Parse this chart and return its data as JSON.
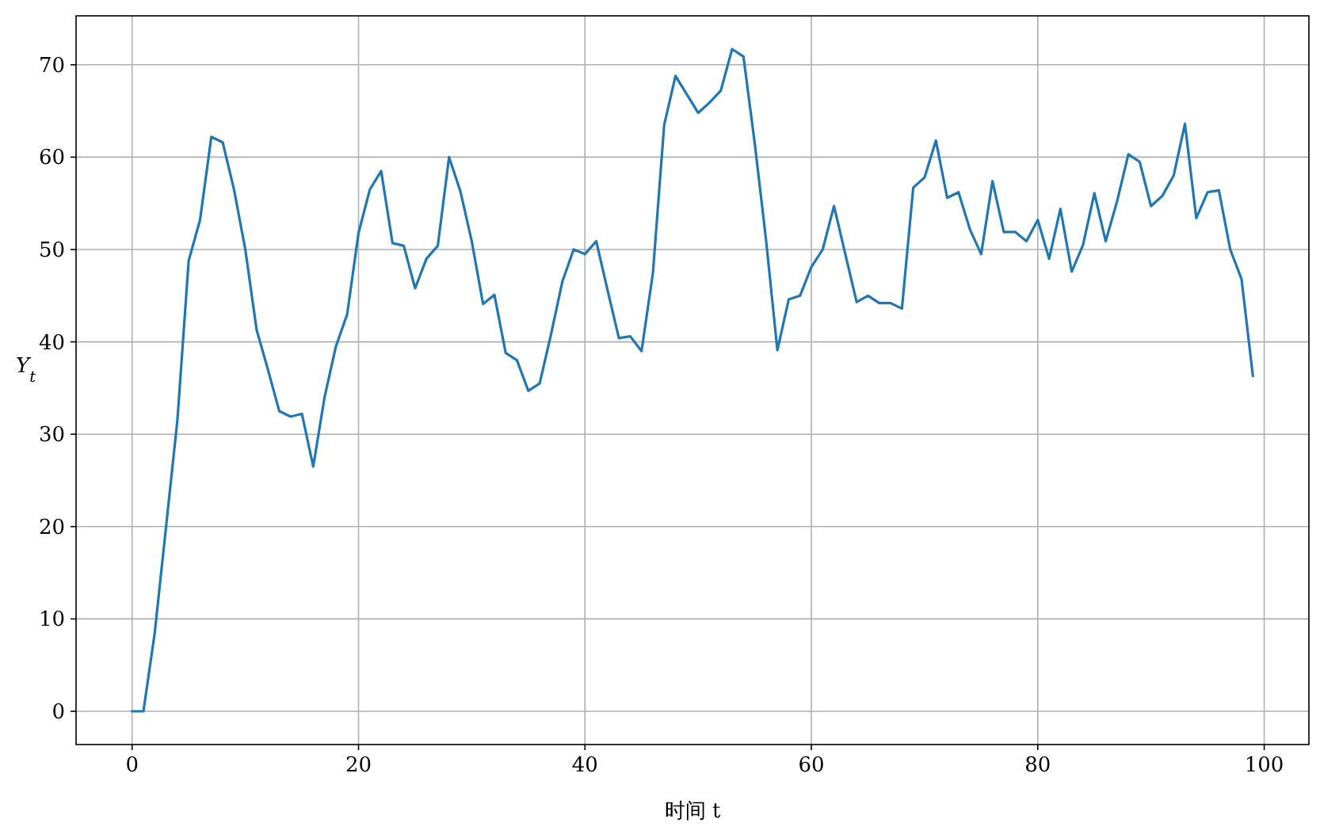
{
  "chart_data": {
    "type": "line",
    "xlabel": "时间 t",
    "ylabel": "Y$_{t}$",
    "x": [
      0,
      1,
      2,
      3,
      4,
      5,
      6,
      7,
      8,
      9,
      10,
      11,
      12,
      13,
      14,
      15,
      16,
      17,
      18,
      19,
      20,
      21,
      22,
      23,
      24,
      25,
      26,
      27,
      28,
      29,
      30,
      31,
      32,
      33,
      34,
      35,
      36,
      37,
      38,
      39,
      40,
      41,
      42,
      43,
      44,
      45,
      46,
      47,
      48,
      49,
      50,
      51,
      52,
      53,
      54,
      55,
      56,
      57,
      58,
      59,
      60,
      61,
      62,
      63,
      64,
      65,
      66,
      67,
      68,
      69,
      70,
      71,
      72,
      73,
      74,
      75,
      76,
      77,
      78,
      79,
      80,
      81,
      82,
      83,
      84,
      85,
      86,
      87,
      88,
      89,
      90,
      91,
      92,
      93,
      94,
      95,
      96,
      97,
      98,
      99
    ],
    "series": [
      {
        "color": "#1f77b4",
        "values": [
          0,
          0,
          8.5,
          20,
          31.5,
          48.8,
          53.2,
          62.2,
          61.6,
          56.5,
          50,
          41.3,
          37,
          32.5,
          31.9,
          32.2,
          26.5,
          34,
          39.5,
          43,
          51.8,
          56.5,
          58.5,
          50.7,
          50.4,
          45.8,
          49,
          50.4,
          60,
          56.3,
          50.9,
          44.1,
          45.1,
          38.8,
          38,
          34.7,
          35.5,
          40.8,
          46.5,
          50,
          49.5,
          50.9,
          45.6,
          40.4,
          40.6,
          39,
          47.4,
          63.5,
          68.8,
          66.8,
          64.8,
          65.9,
          67.2,
          71.7,
          70.9,
          61.5,
          51,
          39.1,
          44.6,
          45,
          48.1,
          50,
          54.7,
          49.5,
          44.3,
          45,
          44.2,
          44.2,
          43.6,
          56.7,
          57.8,
          61.8,
          55.6,
          56.2,
          52.2,
          49.5,
          57.4,
          51.9,
          51.9,
          50.9,
          53.2,
          49,
          54.4,
          47.6,
          50.5,
          56.1,
          50.9,
          55.2,
          60.3,
          59.5,
          54.7,
          55.8,
          58,
          63.6,
          53.4,
          56.2,
          56.4,
          50,
          46.8,
          36.3
        ]
      }
    ],
    "xlim": [
      -4.95,
      103.95
    ],
    "ylim": [
      -3.6,
      75.3
    ],
    "xticks": [
      0,
      20,
      40,
      60,
      80,
      100
    ],
    "yticks": [
      0,
      10,
      20,
      30,
      40,
      50,
      60,
      70
    ],
    "grid": true,
    "marker": "none",
    "line_style": "solid"
  }
}
